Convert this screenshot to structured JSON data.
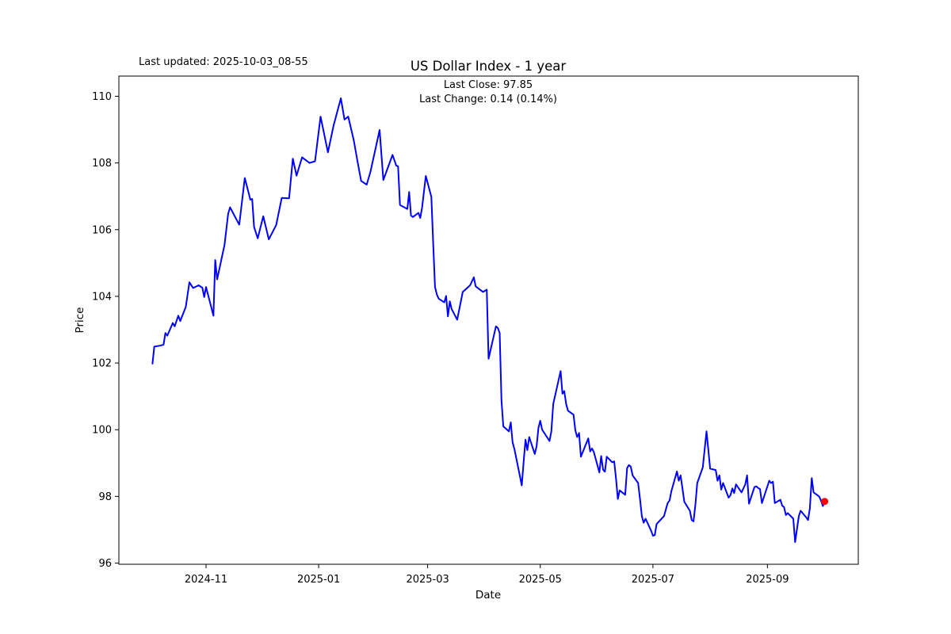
{
  "header": {
    "last_updated": "Last updated: 2025-10-03_08-55",
    "title": "US Dollar Index - 1 year",
    "subtitle_line1": "Last Close: 97.85",
    "subtitle_line2": "Last Change: 0.14 (0.14%)"
  },
  "chart_data": {
    "type": "line",
    "title": "US Dollar Index - 1 year",
    "xlabel": "Date",
    "ylabel": "Price",
    "grid": false,
    "legend": "none",
    "line_color": "#0000ff",
    "marker_color": "#ff0000",
    "background_color": "#ffffff",
    "last_close": 97.85,
    "last_change": "0.14 (0.14%)",
    "y_ticks": [
      96,
      98,
      100,
      102,
      104,
      106,
      108,
      110
    ],
    "x_ticks": [
      {
        "label": "2024-11",
        "date": "2024-11-01"
      },
      {
        "label": "2025-01",
        "date": "2025-01-01"
      },
      {
        "label": "2025-03",
        "date": "2025-03-01"
      },
      {
        "label": "2025-05",
        "date": "2025-05-01"
      },
      {
        "label": "2025-07",
        "date": "2025-07-01"
      },
      {
        "label": "2025-09",
        "date": "2025-09-01"
      }
    ],
    "series": [
      {
        "name": "US Dollar Index",
        "points": [
          [
            "2024-10-03",
            101.98
          ],
          [
            "2024-10-04",
            102.49
          ],
          [
            "2024-10-07",
            102.52
          ],
          [
            "2024-10-09",
            102.55
          ],
          [
            "2024-10-10",
            102.9
          ],
          [
            "2024-10-11",
            102.82
          ],
          [
            "2024-10-14",
            103.2
          ],
          [
            "2024-10-15",
            103.1
          ],
          [
            "2024-10-17",
            103.42
          ],
          [
            "2024-10-18",
            103.26
          ],
          [
            "2024-10-21",
            103.68
          ],
          [
            "2024-10-23",
            104.42
          ],
          [
            "2024-10-25",
            104.25
          ],
          [
            "2024-10-28",
            104.33
          ],
          [
            "2024-10-30",
            104.26
          ],
          [
            "2024-10-31",
            103.98
          ],
          [
            "2024-11-01",
            104.28
          ],
          [
            "2024-11-05",
            103.42
          ],
          [
            "2024-11-06",
            105.09
          ],
          [
            "2024-11-07",
            104.51
          ],
          [
            "2024-11-11",
            105.54
          ],
          [
            "2024-11-13",
            106.48
          ],
          [
            "2024-11-14",
            106.67
          ],
          [
            "2024-11-18",
            106.25
          ],
          [
            "2024-11-19",
            106.15
          ],
          [
            "2024-11-22",
            107.55
          ],
          [
            "2024-11-25",
            106.9
          ],
          [
            "2024-11-26",
            106.92
          ],
          [
            "2024-11-27",
            106.08
          ],
          [
            "2024-11-29",
            105.74
          ],
          [
            "2024-12-02",
            106.4
          ],
          [
            "2024-12-05",
            105.71
          ],
          [
            "2024-12-09",
            106.14
          ],
          [
            "2024-12-12",
            106.95
          ],
          [
            "2024-12-16",
            106.94
          ],
          [
            "2024-12-18",
            108.13
          ],
          [
            "2024-12-20",
            107.62
          ],
          [
            "2024-12-23",
            108.17
          ],
          [
            "2024-12-27",
            108.0
          ],
          [
            "2024-12-30",
            108.05
          ],
          [
            "2024-12-31",
            108.49
          ],
          [
            "2025-01-02",
            109.39
          ],
          [
            "2025-01-06",
            108.32
          ],
          [
            "2025-01-09",
            109.11
          ],
          [
            "2025-01-13",
            109.94
          ],
          [
            "2025-01-15",
            109.3
          ],
          [
            "2025-01-17",
            109.39
          ],
          [
            "2025-01-20",
            108.68
          ],
          [
            "2025-01-22",
            108.05
          ],
          [
            "2025-01-24",
            107.46
          ],
          [
            "2025-01-27",
            107.35
          ],
          [
            "2025-01-29",
            107.73
          ],
          [
            "2025-02-03",
            108.99
          ],
          [
            "2025-02-05",
            107.49
          ],
          [
            "2025-02-10",
            108.24
          ],
          [
            "2025-02-11",
            108.08
          ],
          [
            "2025-02-12",
            107.92
          ],
          [
            "2025-02-13",
            107.9
          ],
          [
            "2025-02-14",
            106.74
          ],
          [
            "2025-02-18",
            106.62
          ],
          [
            "2025-02-19",
            107.13
          ],
          [
            "2025-02-20",
            106.42
          ],
          [
            "2025-02-21",
            106.38
          ],
          [
            "2025-02-24",
            106.5
          ],
          [
            "2025-02-25",
            106.35
          ],
          [
            "2025-02-26",
            106.66
          ],
          [
            "2025-02-28",
            107.61
          ],
          [
            "2025-03-03",
            106.98
          ],
          [
            "2025-03-04",
            105.6
          ],
          [
            "2025-03-05",
            104.28
          ],
          [
            "2025-03-06",
            104.05
          ],
          [
            "2025-03-07",
            103.93
          ],
          [
            "2025-03-10",
            103.82
          ],
          [
            "2025-03-11",
            104.01
          ],
          [
            "2025-03-12",
            103.4
          ],
          [
            "2025-03-13",
            103.85
          ],
          [
            "2025-03-14",
            103.62
          ],
          [
            "2025-03-17",
            103.3
          ],
          [
            "2025-03-20",
            104.13
          ],
          [
            "2025-03-24",
            104.33
          ],
          [
            "2025-03-26",
            104.57
          ],
          [
            "2025-03-27",
            104.3
          ],
          [
            "2025-03-31",
            104.13
          ],
          [
            "2025-04-02",
            104.2
          ],
          [
            "2025-04-03",
            102.13
          ],
          [
            "2025-04-07",
            103.1
          ],
          [
            "2025-04-08",
            103.05
          ],
          [
            "2025-04-09",
            102.9
          ],
          [
            "2025-04-10",
            100.87
          ],
          [
            "2025-04-11",
            100.1
          ],
          [
            "2025-04-14",
            99.95
          ],
          [
            "2025-04-15",
            100.22
          ],
          [
            "2025-04-16",
            99.62
          ],
          [
            "2025-04-17",
            99.42
          ],
          [
            "2025-04-21",
            98.33
          ],
          [
            "2025-04-22",
            99.05
          ],
          [
            "2025-04-23",
            99.7
          ],
          [
            "2025-04-24",
            99.39
          ],
          [
            "2025-04-25",
            99.78
          ],
          [
            "2025-04-28",
            99.27
          ],
          [
            "2025-04-29",
            99.5
          ],
          [
            "2025-04-30",
            100.05
          ],
          [
            "2025-05-01",
            100.27
          ],
          [
            "2025-05-02",
            100.0
          ],
          [
            "2025-05-06",
            99.66
          ],
          [
            "2025-05-07",
            99.95
          ],
          [
            "2025-05-08",
            100.77
          ],
          [
            "2025-05-12",
            101.76
          ],
          [
            "2025-05-13",
            101.08
          ],
          [
            "2025-05-14",
            101.16
          ],
          [
            "2025-05-15",
            100.77
          ],
          [
            "2025-05-16",
            100.57
          ],
          [
            "2025-05-19",
            100.45
          ],
          [
            "2025-05-20",
            99.98
          ],
          [
            "2025-05-21",
            99.78
          ],
          [
            "2025-05-22",
            99.9
          ],
          [
            "2025-05-23",
            99.19
          ],
          [
            "2025-05-27",
            99.74
          ],
          [
            "2025-05-28",
            99.35
          ],
          [
            "2025-05-29",
            99.44
          ],
          [
            "2025-05-30",
            99.33
          ],
          [
            "2025-06-02",
            98.72
          ],
          [
            "2025-06-03",
            99.21
          ],
          [
            "2025-06-04",
            98.8
          ],
          [
            "2025-06-05",
            98.74
          ],
          [
            "2025-06-06",
            99.19
          ],
          [
            "2025-06-09",
            99.02
          ],
          [
            "2025-06-10",
            99.05
          ],
          [
            "2025-06-11",
            98.54
          ],
          [
            "2025-06-12",
            97.92
          ],
          [
            "2025-06-13",
            98.18
          ],
          [
            "2025-06-16",
            98.05
          ],
          [
            "2025-06-17",
            98.85
          ],
          [
            "2025-06-18",
            98.94
          ],
          [
            "2025-06-19",
            98.89
          ],
          [
            "2025-06-20",
            98.63
          ],
          [
            "2025-06-23",
            98.4
          ],
          [
            "2025-06-24",
            97.92
          ],
          [
            "2025-06-25",
            97.41
          ],
          [
            "2025-06-26",
            97.21
          ],
          [
            "2025-06-27",
            97.33
          ],
          [
            "2025-06-30",
            96.97
          ],
          [
            "2025-07-01",
            96.82
          ],
          [
            "2025-07-02",
            96.84
          ],
          [
            "2025-07-03",
            97.17
          ],
          [
            "2025-07-07",
            97.41
          ],
          [
            "2025-07-08",
            97.61
          ],
          [
            "2025-07-09",
            97.8
          ],
          [
            "2025-07-10",
            97.88
          ],
          [
            "2025-07-11",
            98.16
          ],
          [
            "2025-07-14",
            98.75
          ],
          [
            "2025-07-15",
            98.47
          ],
          [
            "2025-07-16",
            98.63
          ],
          [
            "2025-07-17",
            98.23
          ],
          [
            "2025-07-18",
            97.84
          ],
          [
            "2025-07-21",
            97.57
          ],
          [
            "2025-07-22",
            97.29
          ],
          [
            "2025-07-23",
            97.25
          ],
          [
            "2025-07-24",
            97.76
          ],
          [
            "2025-07-25",
            98.4
          ],
          [
            "2025-07-28",
            98.87
          ],
          [
            "2025-07-30",
            99.95
          ],
          [
            "2025-08-01",
            98.83
          ],
          [
            "2025-08-04",
            98.79
          ],
          [
            "2025-08-05",
            98.47
          ],
          [
            "2025-08-06",
            98.63
          ],
          [
            "2025-08-07",
            98.2
          ],
          [
            "2025-08-08",
            98.4
          ],
          [
            "2025-08-11",
            97.96
          ],
          [
            "2025-08-12",
            98.04
          ],
          [
            "2025-08-13",
            98.24
          ],
          [
            "2025-08-14",
            98.1
          ],
          [
            "2025-08-15",
            98.36
          ],
          [
            "2025-08-18",
            98.12
          ],
          [
            "2025-08-20",
            98.36
          ],
          [
            "2025-08-21",
            98.63
          ],
          [
            "2025-08-22",
            97.78
          ],
          [
            "2025-08-25",
            98.28
          ],
          [
            "2025-08-26",
            98.3
          ],
          [
            "2025-08-27",
            98.25
          ],
          [
            "2025-08-28",
            98.22
          ],
          [
            "2025-08-29",
            97.8
          ],
          [
            "2025-09-02",
            98.47
          ],
          [
            "2025-09-03",
            98.4
          ],
          [
            "2025-09-04",
            98.44
          ],
          [
            "2025-09-05",
            97.8
          ],
          [
            "2025-09-08",
            97.9
          ],
          [
            "2025-09-09",
            97.72
          ],
          [
            "2025-09-10",
            97.68
          ],
          [
            "2025-09-11",
            97.44
          ],
          [
            "2025-09-12",
            97.5
          ],
          [
            "2025-09-15",
            97.33
          ],
          [
            "2025-09-16",
            96.63
          ],
          [
            "2025-09-18",
            97.41
          ],
          [
            "2025-09-19",
            97.57
          ],
          [
            "2025-09-22",
            97.37
          ],
          [
            "2025-09-23",
            97.29
          ],
          [
            "2025-09-24",
            97.64
          ],
          [
            "2025-09-25",
            98.55
          ],
          [
            "2025-09-26",
            98.12
          ],
          [
            "2025-09-29",
            98.0
          ],
          [
            "2025-09-30",
            97.88
          ],
          [
            "2025-10-01",
            97.71
          ],
          [
            "2025-10-02",
            97.85
          ]
        ]
      }
    ]
  }
}
